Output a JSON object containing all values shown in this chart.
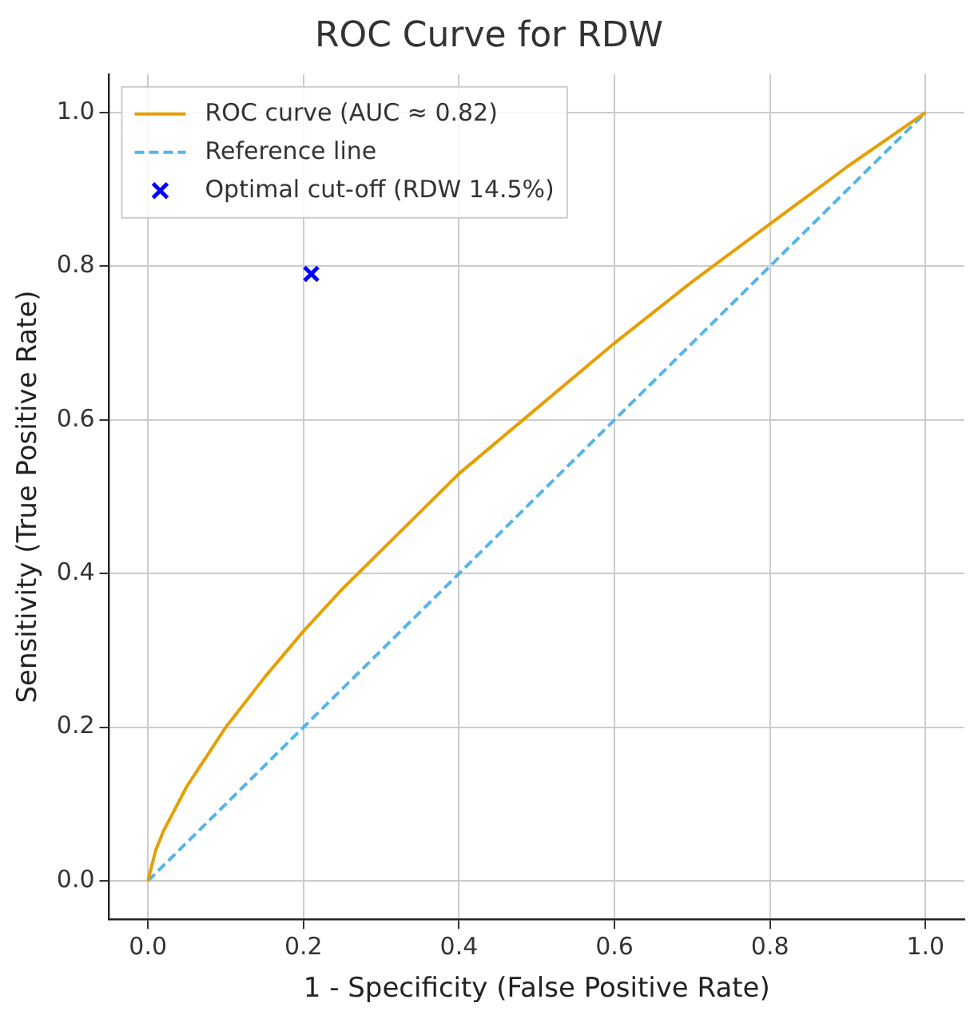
{
  "chart_data": {
    "type": "line",
    "title": "ROC Curve for RDW",
    "xlabel": "1 - Specificity (False Positive Rate)",
    "ylabel": "Sensitivity (True Positive Rate)",
    "series": [
      {
        "name": "ROC curve (AUC ≈ 0.82)",
        "color": "#e69f00",
        "line_style": "solid",
        "marker": "none",
        "x": [
          0,
          0.01,
          0.02,
          0.05,
          0.1,
          0.15,
          0.2,
          0.25,
          0.3,
          0.4,
          0.5,
          0.6,
          0.7,
          0.8,
          0.9,
          1.0
        ],
        "values": [
          0,
          0.04,
          0.065,
          0.123,
          0.2,
          0.265,
          0.325,
          0.38,
          0.43,
          0.53,
          0.615,
          0.7,
          0.78,
          0.855,
          0.93,
          1.0
        ]
      },
      {
        "name": "Reference line",
        "color": "#56b4e9",
        "line_style": "dashed",
        "marker": "none",
        "x": [
          0,
          1
        ],
        "values": [
          0,
          1
        ]
      },
      {
        "name": "Optimal cut-off (RDW 14.5%)",
        "type": "scatter",
        "color": "#0000ff",
        "marker": "cross",
        "x": [
          0.21
        ],
        "values": [
          0.79
        ]
      }
    ],
    "xlim": [
      -0.05,
      1.05
    ],
    "ylim": [
      -0.05,
      1.05
    ],
    "xticks": [
      {
        "value": 0,
        "label": "0.0"
      },
      {
        "value": 0.2,
        "label": "0.2"
      },
      {
        "value": 0.4,
        "label": "0.4"
      },
      {
        "value": 0.6,
        "label": "0.6"
      },
      {
        "value": 0.8,
        "label": "0.8"
      },
      {
        "value": 1,
        "label": "1.0"
      }
    ],
    "yticks": [
      {
        "value": 0,
        "label": "0.0"
      },
      {
        "value": 0.2,
        "label": "0.2"
      },
      {
        "value": 0.4,
        "label": "0.4"
      },
      {
        "value": 0.6,
        "label": "0.6"
      },
      {
        "value": 0.8,
        "label": "0.8"
      },
      {
        "value": 1,
        "label": "1.0"
      }
    ],
    "grid": true,
    "legend": "top left"
  }
}
